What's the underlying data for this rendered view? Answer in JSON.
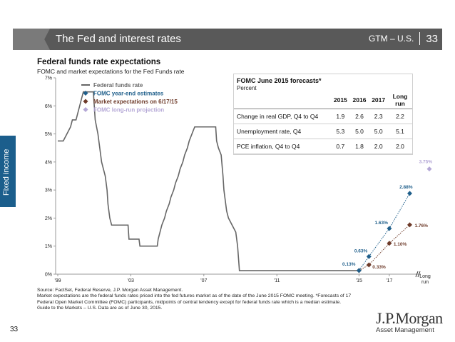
{
  "header": {
    "title": "The Fed and interest rates",
    "section": "GTM – U.S.",
    "page": "33"
  },
  "side_tab": "Fixed income",
  "chart_data": {
    "type": "line",
    "title": "Federal funds rate expectations",
    "subtitle": "FOMC and market expectations for the Fed Funds rate",
    "y_ticks": [
      "0%",
      "1%",
      "2%",
      "3%",
      "4%",
      "5%",
      "6%",
      "7%"
    ],
    "ylim": [
      0,
      7
    ],
    "x_ticks": [
      "'99",
      "'03",
      "'07",
      "'11",
      "'15",
      "'17"
    ],
    "x_extra_label": "Long run",
    "legend": [
      {
        "label": "Federal funds rate",
        "color": "#666666",
        "marker": "line"
      },
      {
        "label": "FOMC year-end estimates",
        "color": "#1f5f8b",
        "marker": "diamond"
      },
      {
        "label": "Market expectations on 6/17/15",
        "color": "#6e3b2a",
        "marker": "diamond"
      },
      {
        "label": "FOMC long-run projection",
        "color": "#b4a7d6",
        "marker": "diamond"
      }
    ],
    "fed_funds_rate": [
      [
        1999.0,
        4.75
      ],
      [
        1999.3,
        4.75
      ],
      [
        1999.5,
        5.0
      ],
      [
        1999.7,
        5.25
      ],
      [
        1999.8,
        5.5
      ],
      [
        2000.0,
        5.5
      ],
      [
        2000.1,
        5.75
      ],
      [
        2000.2,
        6.0
      ],
      [
        2000.4,
        6.5
      ],
      [
        2000.5,
        6.5
      ],
      [
        2000.95,
        6.5
      ],
      [
        2001.0,
        6.0
      ],
      [
        2001.05,
        5.5
      ],
      [
        2001.2,
        5.0
      ],
      [
        2001.3,
        4.5
      ],
      [
        2001.4,
        4.0
      ],
      [
        2001.5,
        3.75
      ],
      [
        2001.6,
        3.5
      ],
      [
        2001.7,
        3.0
      ],
      [
        2001.75,
        2.5
      ],
      [
        2001.85,
        2.0
      ],
      [
        2001.95,
        1.75
      ],
      [
        2002.85,
        1.75
      ],
      [
        2002.9,
        1.25
      ],
      [
        2003.45,
        1.25
      ],
      [
        2003.5,
        1.0
      ],
      [
        2004.45,
        1.0
      ],
      [
        2004.5,
        1.25
      ],
      [
        2004.6,
        1.5
      ],
      [
        2004.7,
        1.75
      ],
      [
        2004.85,
        2.0
      ],
      [
        2004.95,
        2.25
      ],
      [
        2005.1,
        2.5
      ],
      [
        2005.2,
        2.75
      ],
      [
        2005.35,
        3.0
      ],
      [
        2005.45,
        3.25
      ],
      [
        2005.6,
        3.5
      ],
      [
        2005.7,
        3.75
      ],
      [
        2005.85,
        4.0
      ],
      [
        2005.95,
        4.25
      ],
      [
        2006.1,
        4.5
      ],
      [
        2006.2,
        4.75
      ],
      [
        2006.35,
        5.0
      ],
      [
        2006.5,
        5.25
      ],
      [
        2007.65,
        5.25
      ],
      [
        2007.7,
        4.75
      ],
      [
        2007.8,
        4.5
      ],
      [
        2007.95,
        4.25
      ],
      [
        2008.05,
        3.5
      ],
      [
        2008.1,
        3.0
      ],
      [
        2008.25,
        2.25
      ],
      [
        2008.35,
        2.0
      ],
      [
        2008.75,
        1.5
      ],
      [
        2008.85,
        1.0
      ],
      [
        2008.95,
        0.125
      ],
      [
        2015.45,
        0.125
      ]
    ],
    "fomc_estimates": [
      {
        "x": 2015.5,
        "y": 0.13,
        "label": "0.13%"
      },
      {
        "x": 2016,
        "y": 0.63,
        "label": "0.63%"
      },
      {
        "x": 2017,
        "y": 1.63,
        "label": "1.63%"
      },
      {
        "x": 2018,
        "y": 2.88,
        "label": "2.88%"
      }
    ],
    "market_expectations": [
      {
        "x": 2015.5,
        "y": 0.13,
        "label": ""
      },
      {
        "x": 2016,
        "y": 0.33,
        "label": "0.33%"
      },
      {
        "x": 2017,
        "y": 1.1,
        "label": "1.10%"
      },
      {
        "x": 2018,
        "y": 1.76,
        "label": "1.76%"
      }
    ],
    "long_run": {
      "y": 3.75,
      "label": "3.75%"
    }
  },
  "forecast_table": {
    "title": "FOMC June 2015 forecasts*",
    "unit": "Percent",
    "columns": [
      "2015",
      "2016",
      "2017",
      "Long run"
    ],
    "rows": [
      {
        "label": "Change in real GDP, Q4 to Q4",
        "values": [
          "1.9",
          "2.6",
          "2.3",
          "2.2"
        ]
      },
      {
        "label": "Unemployment rate, Q4",
        "values": [
          "5.3",
          "5.0",
          "5.0",
          "5.1"
        ]
      },
      {
        "label": "PCE inflation, Q4 to Q4",
        "values": [
          "0.7",
          "1.8",
          "2.0",
          "2.0"
        ]
      }
    ]
  },
  "footnote": {
    "line1": "Source: FactSet, Federal Reserve, J.P. Morgan Asset Management.",
    "line2": "Market expectations are the federal funds rates priced into the fed futures market as of the date of the June 2015 FOMC meeting. *Forecasts of 17 Federal Open Market Committee (FOMC) participants, midpoints of central tendency except for federal funds rate which is a median estimate.",
    "line3": "Guide to the Markets – U.S. Data are as of June 30, 2015."
  },
  "page_number": "33",
  "logo": {
    "brand": "J.P.Morgan",
    "sub": "Asset Management"
  }
}
